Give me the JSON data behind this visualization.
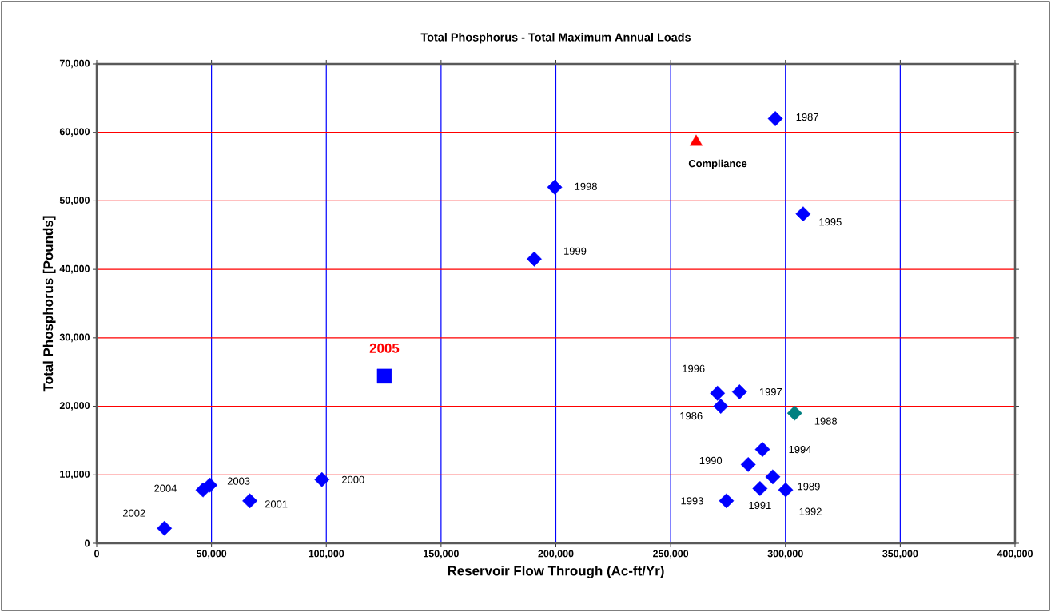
{
  "chart_data": {
    "type": "scatter",
    "title": "Total Phosphorus - Total Maximum Annual Loads",
    "xlabel": "Reservoir Flow Through (Ac-ft/Yr)",
    "ylabel": "Total Phosphorus [Pounds]",
    "series": [
      {
        "marker": "diamond",
        "colors": [
          "#0000ff",
          "#0000ff",
          "#008080",
          "#0000ff",
          "#0000ff",
          "#0000ff",
          "#0000ff",
          "#0000ff",
          "#0000ff",
          "#0000ff",
          "#0000ff",
          "#0000ff",
          "#0000ff",
          "#0000ff",
          "#0000ff",
          "#0000ff",
          "#0000ff",
          "#0000ff",
          "#0000ff"
        ],
        "x": [
          271800,
          295600,
          304000,
          294500,
          283800,
          288900,
          300100,
          274300,
          290000,
          307700,
          270400,
          280000,
          199500,
          190600,
          98100,
          66700,
          29500,
          49300,
          46300
        ],
        "values": [
          20000,
          62000,
          19000,
          9700,
          11500,
          8000,
          7800,
          6200,
          13700,
          48100,
          21900,
          22100,
          52000,
          41500,
          9300,
          6200,
          2200,
          8500,
          7800
        ]
      },
      {
        "color": "#0000ff",
        "marker": "square",
        "x": [
          125300
        ],
        "values": [
          24400
        ]
      },
      {
        "color": "#ff0000",
        "marker": "triangle",
        "x": [
          261100
        ],
        "values": [
          58600
        ]
      }
    ],
    "xlim": [
      0,
      400000
    ],
    "ylim": [
      0,
      70000
    ],
    "xticks": [
      {
        "value": 0,
        "label": "0"
      },
      {
        "value": 50000,
        "label": "50,000"
      },
      {
        "value": 100000,
        "label": "100,000"
      },
      {
        "value": 150000,
        "label": "150,000"
      },
      {
        "value": 200000,
        "label": "200,000"
      },
      {
        "value": 250000,
        "label": "250,000"
      },
      {
        "value": 300000,
        "label": "300,000"
      },
      {
        "value": 350000,
        "label": "350,000"
      },
      {
        "value": 400000,
        "label": "400,000"
      }
    ],
    "yticks": [
      {
        "value": 0,
        "label": "0"
      },
      {
        "value": 10000,
        "label": "10,000"
      },
      {
        "value": 20000,
        "label": "20,000"
      },
      {
        "value": 30000,
        "label": "30,000"
      },
      {
        "value": 40000,
        "label": "40,000"
      },
      {
        "value": 50000,
        "label": "50,000"
      },
      {
        "value": 60000,
        "label": "60,000"
      },
      {
        "value": 70000,
        "label": "70,000"
      }
    ],
    "grid": true,
    "annotations": [
      {
        "text": "1986",
        "x": 271800,
        "y": 20000
      },
      {
        "text": "1987",
        "x": 295600,
        "y": 62000
      },
      {
        "text": "1988",
        "x": 304000,
        "y": 19000
      },
      {
        "text": "1989",
        "x": 294500,
        "y": 9700
      },
      {
        "text": "1990",
        "x": 283800,
        "y": 11500
      },
      {
        "text": "1991",
        "x": 288900,
        "y": 8000
      },
      {
        "text": "1992",
        "x": 300100,
        "y": 7800
      },
      {
        "text": "1993",
        "x": 274300,
        "y": 6200
      },
      {
        "text": "1994",
        "x": 290000,
        "y": 13700
      },
      {
        "text": "1995",
        "x": 307700,
        "y": 48100
      },
      {
        "text": "1996",
        "x": 270400,
        "y": 21900
      },
      {
        "text": "1997",
        "x": 280000,
        "y": 22100
      },
      {
        "text": "1998",
        "x": 199500,
        "y": 52000
      },
      {
        "text": "1999",
        "x": 190600,
        "y": 41500
      },
      {
        "text": "2000",
        "x": 98100,
        "y": 9300
      },
      {
        "text": "2001",
        "x": 66700,
        "y": 6200
      },
      {
        "text": "2002",
        "x": 29500,
        "y": 2200
      },
      {
        "text": "2003",
        "x": 49300,
        "y": 8500
      },
      {
        "text": "2004",
        "x": 46300,
        "y": 7800
      },
      {
        "text": "2005",
        "x": 125300,
        "y": 24400
      },
      {
        "text": "Compliance",
        "x": 261100,
        "y": 58600
      }
    ]
  }
}
